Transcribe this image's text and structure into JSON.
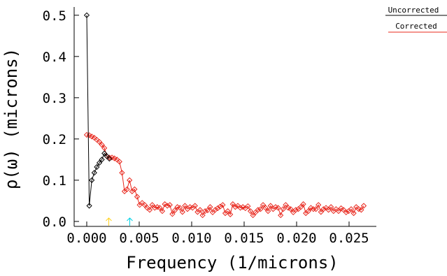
{
  "chart_data": {
    "type": "line",
    "title": "",
    "xlabel": "Frequency (1/microns)",
    "ylabel": "ρ(ω) (microns)",
    "xlim": [
      -0.0012,
      0.0276
    ],
    "ylim": [
      -0.012,
      0.52
    ],
    "xticks": [
      0.0,
      0.005,
      0.01,
      0.015,
      0.02,
      0.025
    ],
    "xtick_labels": [
      "0.000",
      "0.005",
      "0.010",
      "0.015",
      "0.020",
      "0.025"
    ],
    "yticks": [
      0.0,
      0.1,
      0.2,
      0.3,
      0.4,
      0.5
    ],
    "ytick_labels": [
      "0.0",
      "0.1",
      "0.2",
      "0.3",
      "0.4",
      "0.5"
    ],
    "grid": false,
    "legend_position": "top-right, outside plot",
    "series": [
      {
        "name": "Uncorrected",
        "color": "#000000",
        "marker": "diamond",
        "x": [
          0.0,
          0.00024,
          0.00048,
          0.00072,
          0.00096,
          0.0012,
          0.00144,
          0.00168,
          0.00192,
          0.00216
        ],
        "y": [
          0.5,
          0.038,
          0.1,
          0.118,
          0.132,
          0.142,
          0.15,
          0.165,
          0.158,
          0.152
        ]
      },
      {
        "name": "Corrected",
        "color": "#e8281e",
        "marker": "diamond",
        "x": [
          0.0,
          0.00024,
          0.00048,
          0.00072,
          0.00096,
          0.0012,
          0.00144,
          0.00168,
          0.00192,
          0.00216,
          0.0024,
          0.00264,
          0.00288,
          0.00312,
          0.00336,
          0.0036,
          0.00384,
          0.00408,
          0.00432,
          0.00456,
          0.0048,
          0.00504,
          0.00528,
          0.00552,
          0.00576,
          0.006,
          0.00624,
          0.00648,
          0.00672,
          0.00696,
          0.0072,
          0.00744,
          0.00768,
          0.00792,
          0.00816,
          0.0084,
          0.00864,
          0.00888,
          0.00912,
          0.00936,
          0.0096,
          0.00984,
          0.01008,
          0.01032,
          0.01056,
          0.0108,
          0.01104,
          0.01128,
          0.01152,
          0.01176,
          0.012,
          0.01224,
          0.01248,
          0.01272,
          0.01296,
          0.0132,
          0.01344,
          0.01368,
          0.01392,
          0.01416,
          0.0144,
          0.01464,
          0.01488,
          0.01512,
          0.01536,
          0.0156,
          0.01584,
          0.01608,
          0.01632,
          0.01656,
          0.0168,
          0.01704,
          0.01728,
          0.01752,
          0.01776,
          0.018,
          0.01824,
          0.01848,
          0.01872,
          0.01896,
          0.0192,
          0.01944,
          0.01968,
          0.01992,
          0.02016,
          0.0204,
          0.02064,
          0.02088,
          0.02112,
          0.02136,
          0.0216,
          0.02184,
          0.02208,
          0.02232,
          0.02256,
          0.0228,
          0.02304,
          0.02328,
          0.02352,
          0.02376,
          0.024,
          0.02424,
          0.02448,
          0.02472,
          0.02496,
          0.0252,
          0.02544,
          0.02568,
          0.02592,
          0.02616,
          0.0264
        ],
        "y": [
          0.21,
          0.209,
          0.206,
          0.203,
          0.198,
          0.193,
          0.186,
          0.178,
          0.158,
          0.155,
          0.155,
          0.153,
          0.15,
          0.145,
          0.118,
          0.073,
          0.078,
          0.1,
          0.073,
          0.078,
          0.06,
          0.04,
          0.045,
          0.04,
          0.033,
          0.028,
          0.04,
          0.033,
          0.035,
          0.033,
          0.025,
          0.042,
          0.038,
          0.04,
          0.018,
          0.027,
          0.035,
          0.033,
          0.023,
          0.038,
          0.03,
          0.035,
          0.033,
          0.038,
          0.023,
          0.028,
          0.015,
          0.025,
          0.027,
          0.035,
          0.022,
          0.028,
          0.032,
          0.036,
          0.04,
          0.02,
          0.025,
          0.017,
          0.042,
          0.035,
          0.038,
          0.033,
          0.035,
          0.032,
          0.037,
          0.025,
          0.015,
          0.022,
          0.028,
          0.03,
          0.04,
          0.033,
          0.025,
          0.038,
          0.03,
          0.035,
          0.033,
          0.015,
          0.03,
          0.04,
          0.033,
          0.03,
          0.022,
          0.028,
          0.03,
          0.035,
          0.042,
          0.02,
          0.025,
          0.033,
          0.03,
          0.03,
          0.04,
          0.023,
          0.03,
          0.033,
          0.028,
          0.035,
          0.025,
          0.03,
          0.025,
          0.032,
          0.028,
          0.022,
          0.025,
          0.03,
          0.02,
          0.035,
          0.03,
          0.028,
          0.038
        ]
      }
    ],
    "markers": [
      {
        "x": 0.0021,
        "color": "#ffd21e",
        "symbol": "↑"
      },
      {
        "x": 0.0041,
        "color": "#00d2e6",
        "symbol": "↑"
      }
    ]
  }
}
